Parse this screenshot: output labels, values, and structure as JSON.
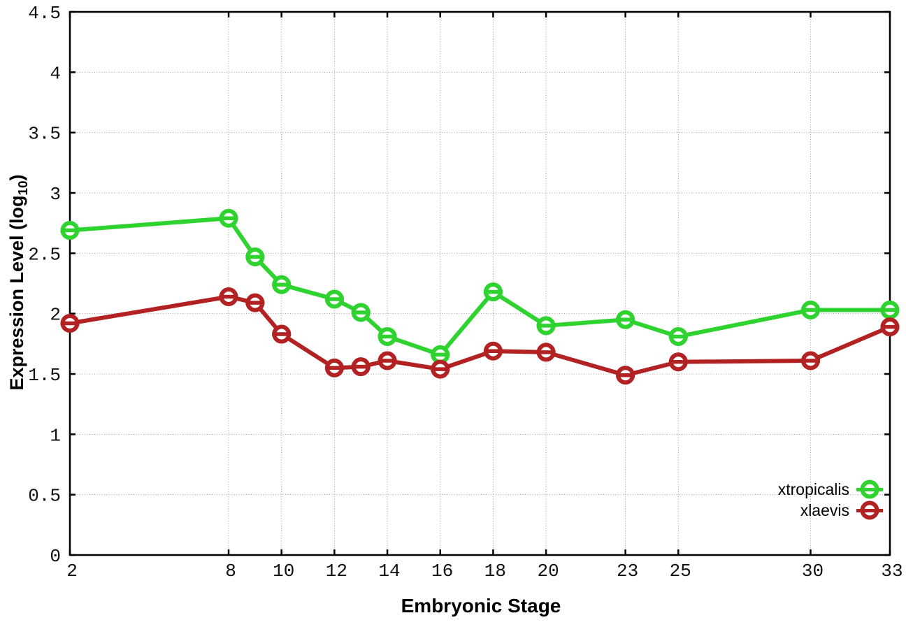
{
  "chart_data": {
    "type": "line",
    "title": "",
    "xlabel": "Embryonic Stage",
    "ylabel": "Expression Level (log10)",
    "ylabel_prefix": "Expression Level (log",
    "ylabel_sub": "10",
    "ylabel_suffix": ")",
    "xlim": [
      2,
      33
    ],
    "ylim": [
      0,
      4.5
    ],
    "x_ticks": [
      2,
      8,
      10,
      12,
      14,
      16,
      18,
      20,
      23,
      25,
      30,
      33
    ],
    "y_ticks": [
      0,
      0.5,
      1,
      1.5,
      2,
      2.5,
      3,
      3.5,
      4,
      4.5
    ],
    "grid": true,
    "legend_position": "bottom-right",
    "marker": "open-circle-with-error-cap",
    "x": [
      2,
      8,
      9,
      10,
      12,
      13,
      14,
      16,
      18,
      20,
      23,
      25,
      30,
      33
    ],
    "series": [
      {
        "name": "xtropicalis",
        "color": "#2fd32f",
        "values": [
          2.69,
          2.79,
          2.47,
          2.24,
          2.12,
          2.01,
          1.81,
          1.66,
          2.18,
          1.9,
          1.95,
          1.81,
          2.03,
          2.03
        ]
      },
      {
        "name": "xlaevis",
        "color": "#b22222",
        "values": [
          1.92,
          2.14,
          2.09,
          1.83,
          1.55,
          1.56,
          1.61,
          1.54,
          1.69,
          1.68,
          1.49,
          1.6,
          1.61,
          1.89
        ]
      }
    ]
  }
}
